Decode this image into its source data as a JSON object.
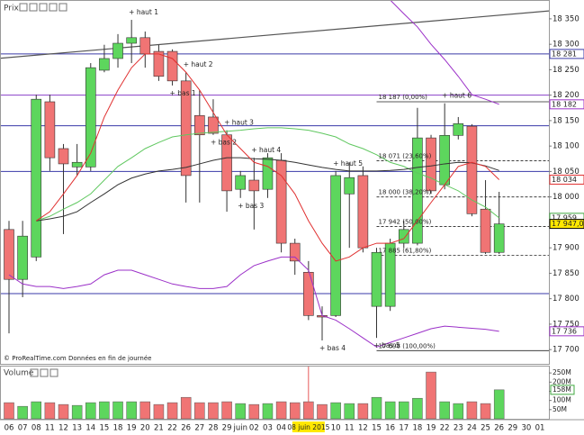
{
  "chart_data": {
    "type": "candlestick",
    "title": "Prix",
    "source": "© ProRealTime.com Données en fin de journée",
    "categories": [
      "06",
      "07",
      "08",
      "11",
      "12",
      "13",
      "14",
      "15",
      "18",
      "19",
      "20",
      "21",
      "22",
      "26",
      "27",
      "28",
      "29",
      "juin",
      "02",
      "03",
      "04",
      null,
      "08 juin 2015",
      null,
      "10",
      "11",
      "12",
      "15",
      "16",
      "17",
      "18",
      "19",
      "22",
      "23",
      "24",
      "25",
      "26",
      "29",
      "30",
      "01"
    ],
    "cursor": 22,
    "open": [
      17936,
      17838,
      17882,
      18187,
      18095,
      18059,
      18059,
      18249,
      18272,
      18302,
      18313,
      18286,
      18286,
      18228,
      18160,
      18157,
      18122,
      18015,
      18033,
      18015,
      18072,
      17909,
      17852,
      17767,
      17767,
      18006,
      18042,
      17785,
      17785,
      17909,
      17909,
      18116,
      18024,
      18121,
      18139,
      17976,
      17891,
      null,
      null,
      null
    ],
    "high": [
      17953,
      17953,
      18201,
      18201,
      18104,
      18104,
      18263,
      18299,
      18320,
      18348,
      18325,
      18299,
      18290,
      18245,
      18210,
      18192,
      18131,
      18051,
      18077,
      18086,
      18086,
      17918,
      17874,
      17785,
      18051,
      18068,
      18060,
      17900,
      17918,
      17953,
      18175,
      18122,
      18184,
      18157,
      18143,
      18033,
      18010,
      null,
      null,
      null
    ],
    "low": [
      17732,
      17803,
      17874,
      18051,
      17927,
      18042,
      18051,
      18245,
      18254,
      18263,
      18254,
      18228,
      18219,
      17989,
      17989,
      18122,
      17971,
      17998,
      17936,
      17998,
      17891,
      17847,
      17758,
      17718,
      17764,
      17900,
      17891,
      17723,
      17776,
      17900,
      17905,
      18006,
      18015,
      18113,
      17962,
      17888,
      17888,
      null,
      null,
      null
    ],
    "close": [
      17838,
      17923,
      18192,
      18077,
      18065,
      18068,
      18254,
      18272,
      18302,
      18313,
      18281,
      18237,
      18228,
      18042,
      18122,
      18125,
      18012,
      18042,
      18012,
      18077,
      17909,
      17874,
      17767,
      17764,
      18042,
      18038,
      17900,
      17891,
      17909,
      17936,
      18116,
      18012,
      18121,
      18144,
      17967,
      17891,
      17947.02,
      null,
      null,
      null
    ],
    "up_color": "#5dd65d",
    "down_color": "#f07474",
    "ylim": [
      17672,
      18387
    ],
    "yticks": [
      {
        "value": 18350,
        "label": "18 350"
      },
      {
        "value": 18300,
        "label": "18 300"
      },
      {
        "value": 18250,
        "label": "18 250"
      },
      {
        "value": 18200,
        "label": "18 200"
      },
      {
        "value": 18150,
        "label": "18 150"
      },
      {
        "value": 18100,
        "label": "18 100"
      },
      {
        "value": 18050,
        "label": "18 050"
      },
      {
        "value": 18000,
        "label": "18 000"
      },
      {
        "value": 17950,
        "label": "17 950"
      },
      {
        "value": 17900,
        "label": "17 900"
      },
      {
        "value": 17850,
        "label": "17 850"
      },
      {
        "value": 17800,
        "label": "17 800"
      },
      {
        "value": 17750,
        "label": "17 750"
      },
      {
        "value": 17700,
        "label": "17 700"
      }
    ],
    "lines": [
      {
        "color": "#9b30c8",
        "values": [
          null,
          null,
          null,
          null,
          null,
          null,
          null,
          null,
          null,
          null,
          null,
          null,
          null,
          null,
          null,
          null,
          null,
          null,
          null,
          null,
          null,
          null,
          null,
          null,
          null,
          null,
          null,
          18400,
          18387,
          18360,
          18334,
          18300,
          18270,
          18237,
          18201,
          18192,
          18182,
          null,
          null,
          null
        ]
      },
      {
        "color": "#9b30c8",
        "values": [
          17847,
          17829,
          17824,
          17824,
          17820,
          17824,
          17829,
          17847,
          17856,
          17856,
          17847,
          17838,
          17829,
          17824,
          17820,
          17820,
          17824,
          17847,
          17865,
          17874,
          17882,
          17882,
          17856,
          17767,
          17758,
          17741,
          17723,
          17705,
          17714,
          17723,
          17732,
          17741,
          17746,
          17744,
          17742,
          17740,
          17736,
          null,
          null,
          null
        ]
      },
      {
        "color": "#60c860",
        "values": [
          null,
          null,
          17953,
          17962,
          17976,
          17989,
          18006,
          18033,
          18060,
          18077,
          18095,
          18107,
          18118,
          18122,
          18125,
          18127,
          18129,
          18131,
          18134,
          18136,
          18136,
          18134,
          18131,
          18125,
          18118,
          18104,
          18095,
          18083,
          18068,
          18060,
          18047,
          18037,
          18024,
          18012,
          17994,
          17980,
          17959,
          null,
          null,
          null
        ]
      },
      {
        "color": "#333333",
        "values": [
          null,
          null,
          17953,
          17957,
          17962,
          17971,
          17989,
          18006,
          18024,
          18037,
          18045,
          18051,
          18054,
          18058,
          18065,
          18072,
          18077,
          18077,
          18075,
          18074,
          18072,
          18068,
          18063,
          18058,
          18054,
          18051,
          18051,
          18051,
          18052,
          18054,
          18058,
          18061,
          18065,
          18068,
          18067,
          18061,
          18052,
          null,
          null,
          null
        ]
      },
      {
        "color": "#e03030",
        "values": [
          null,
          null,
          17953,
          17971,
          18006,
          18042,
          18086,
          18157,
          18210,
          18254,
          18281,
          18281,
          18272,
          18245,
          18210,
          18166,
          18122,
          18095,
          18068,
          18060,
          18042,
          18006,
          17953,
          17909,
          17874,
          17882,
          17900,
          17909,
          17909,
          17918,
          17953,
          17989,
          18024,
          18060,
          18068,
          18060,
          18034,
          null,
          null,
          null
        ]
      }
    ],
    "hlines": [
      {
        "value": 18281,
        "color": "#3a3aa8"
      },
      {
        "value": 18200,
        "color": "#8a40c8"
      },
      {
        "value": 18140,
        "color": "#3a3aa8"
      },
      {
        "value": 18050,
        "color": "#3a3aa8"
      },
      {
        "value": 17810,
        "color": "#3a3aa8"
      }
    ],
    "trendline": {
      "from": [
        0,
        18274
      ],
      "to": [
        39,
        18364
      ],
      "color": "#555555"
    },
    "fibonacci": {
      "from_category": 27,
      "levels": [
        {
          "value": 18187,
          "label": "18 187 (0,00%)"
        },
        {
          "value": 18071,
          "label": "18 071 (23,60%)"
        },
        {
          "value": 18000,
          "label": "18 000 (38,20%)"
        },
        {
          "value": 17942,
          "label": "17 942 (50,00%)"
        },
        {
          "value": 17885,
          "label": "17 885 (61,80%)"
        },
        {
          "value": 17698,
          "label": "17 698 (100,00%)"
        }
      ]
    },
    "highs": [
      {
        "label": "+ haut 1",
        "category": 9
      },
      {
        "label": "+ haut 2",
        "category": 13
      },
      {
        "label": "+ haut 3",
        "category": 16
      },
      {
        "label": "+ haut 4",
        "category": 18
      },
      {
        "label": "+ haut 5",
        "category": 24
      },
      {
        "label": "+ haut 6",
        "category": 32
      }
    ],
    "lows": [
      {
        "label": "+ bas 1",
        "category": 12
      },
      {
        "label": "+ bas 2",
        "category": 15
      },
      {
        "label": "+ bas 3",
        "category": 17
      },
      {
        "label": "+ bas 4",
        "category": 23
      },
      {
        "label": "+ bas 5",
        "category": 27
      }
    ],
    "badges": [
      {
        "value": 18281,
        "label": "18 281",
        "color": "#3a3aa8",
        "fill": "#ffffff"
      },
      {
        "value": 18182,
        "label": "18 182",
        "color": "#9b30c8",
        "fill": "#ffffff"
      },
      {
        "value": 18034,
        "label": "18 034",
        "color": "#e03030",
        "fill": "#ffffff"
      },
      {
        "value": 17959,
        "label": "17 959",
        "color": "#40a840",
        "fill": "#ffffff"
      },
      {
        "value": 17947.02,
        "label": "17 947,02",
        "color": "#000000",
        "fill": "#ffe800"
      },
      {
        "value": 17736,
        "label": "17 736",
        "color": "#9b30c8",
        "fill": "#ffffff"
      }
    ],
    "volume": {
      "title": "Volume",
      "values": [
        88,
        68,
        93,
        88,
        78,
        73,
        88,
        93,
        93,
        93,
        93,
        78,
        88,
        117,
        88,
        88,
        93,
        83,
        78,
        83,
        93,
        88,
        93,
        78,
        88,
        83,
        83,
        117,
        93,
        93,
        112,
        255,
        93,
        83,
        93,
        83,
        158,
        null,
        null,
        null
      ],
      "ylim": [
        0,
        285
      ],
      "yticks": [
        {
          "value": 250,
          "label": "250M"
        },
        {
          "value": 200,
          "label": "200M"
        },
        {
          "value": 150,
          "label": "150M"
        },
        {
          "value": 100,
          "label": "100M"
        },
        {
          "value": 50,
          "label": "50M"
        }
      ],
      "badge": {
        "value": 158,
        "label": "158M",
        "color": "#40a840"
      }
    }
  }
}
